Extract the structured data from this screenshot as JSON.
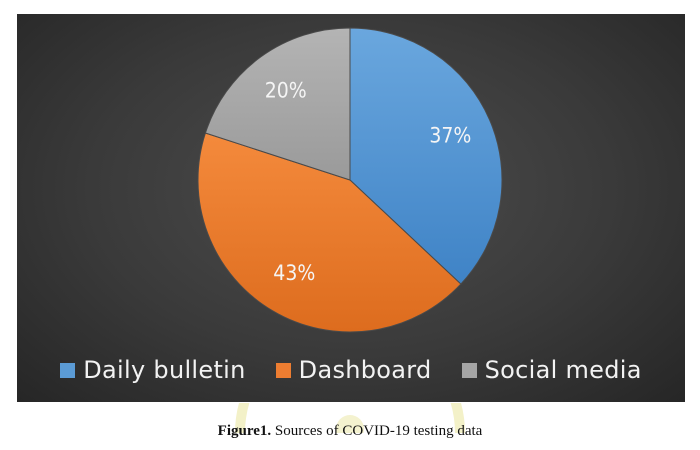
{
  "chart_data": {
    "type": "pie",
    "categories": [
      "Daily bulletin",
      "Dashboard",
      "Social media"
    ],
    "values": [
      37,
      43,
      20
    ],
    "labels": [
      "37%",
      "43%",
      "20%"
    ],
    "colors": [
      "#5b9bd5",
      "#ed7d31",
      "#a5a5a5"
    ],
    "legend_position": "bottom"
  },
  "caption": {
    "number": "Figure1.",
    "text": " Sources of COVID-19 testing data"
  }
}
